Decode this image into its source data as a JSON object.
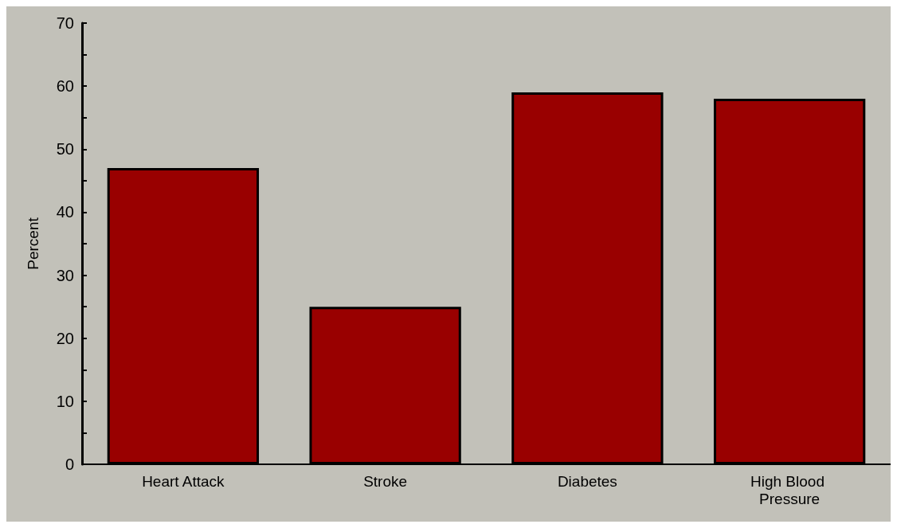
{
  "chart_data": {
    "type": "bar",
    "ylabel": "Percent",
    "categories": [
      "Heart Attack",
      "Stroke",
      "Diabetes",
      "High Blood Pressure"
    ],
    "values": [
      47,
      25,
      59,
      58
    ],
    "color": "#990000",
    "ylim": [
      0,
      70
    ],
    "yticks": [
      0,
      {
        "value": 5,
        "label": null
      },
      10,
      {
        "value": 15,
        "label": null
      },
      20,
      {
        "value": 25,
        "label": null
      },
      30,
      {
        "value": 35,
        "label": null
      },
      40,
      {
        "value": 45,
        "label": null
      },
      50,
      {
        "value": 55,
        "label": null
      },
      60,
      {
        "value": 65,
        "label": null
      },
      70
    ],
    "grid": false
  }
}
